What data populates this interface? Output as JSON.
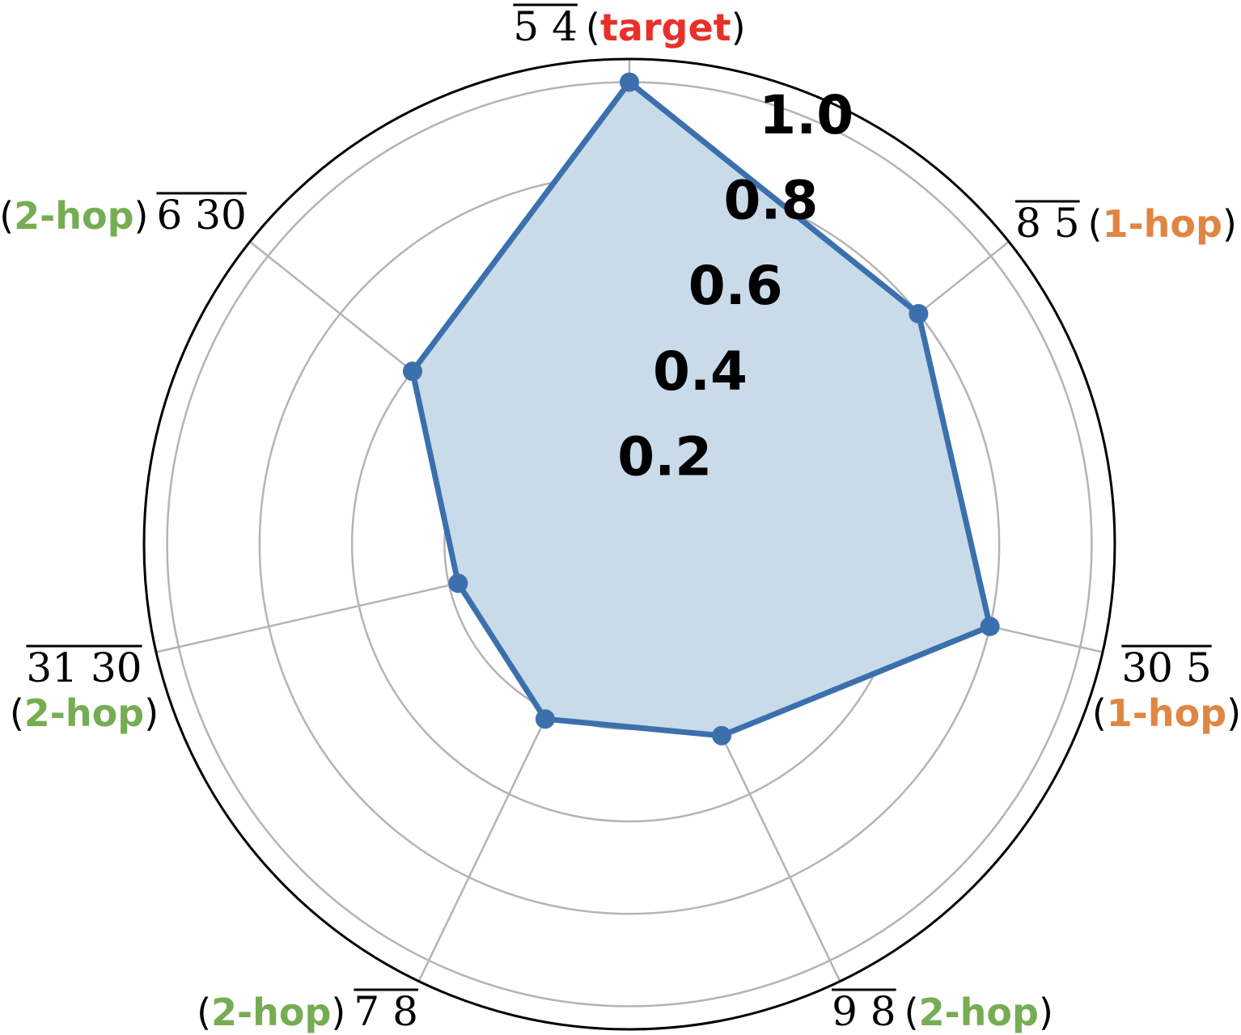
{
  "chart_data": {
    "type": "radar",
    "categories": [
      {
        "name": "5 4",
        "hop": "target",
        "hop_color": "#e8302a"
      },
      {
        "name": "8 5",
        "hop": "1-hop",
        "hop_color": "#e08543"
      },
      {
        "name": "30 5",
        "hop": "1-hop",
        "hop_color": "#e08543"
      },
      {
        "name": "9 8",
        "hop": "2-hop",
        "hop_color": "#76ad53"
      },
      {
        "name": "7 8",
        "hop": "2-hop",
        "hop_color": "#76ad53"
      },
      {
        "name": "31 30",
        "hop": "2-hop",
        "hop_color": "#76ad53"
      },
      {
        "name": "6 30",
        "hop": "2-hop",
        "hop_color": "#76ad53"
      }
    ],
    "values": [
      1.0,
      0.8,
      0.8,
      0.46,
      0.42,
      0.38,
      0.6
    ],
    "rlim": [
      0,
      1.05
    ],
    "rticks": [
      0.2,
      0.4,
      0.6,
      0.8,
      1.0
    ],
    "rtick_labels": [
      "0.2",
      "0.4",
      "0.6",
      "0.8",
      "1.0"
    ],
    "grid": true,
    "colors": {
      "series_line": "#3b70ad",
      "series_fill": "#c9dae9",
      "grid": "#b4b4b4",
      "frame": "#000000"
    }
  }
}
